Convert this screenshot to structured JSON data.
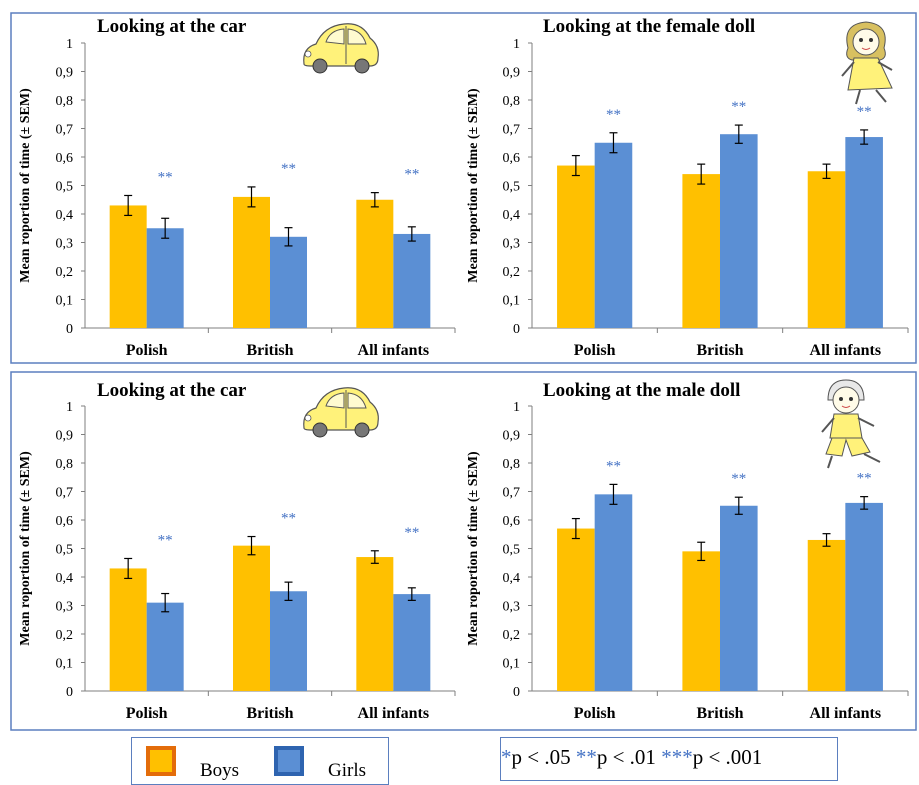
{
  "colors": {
    "boys": "#ffc000",
    "girls": "#5b8fd4",
    "frame": "#5b7fbf",
    "stars": "#4472c4",
    "axis": "#7f7f7f"
  },
  "top_title_fragment": "",
  "legend": {
    "boys_label": "Boys",
    "girls_label": "Girls",
    "sig": {
      "one_star": "*",
      "one_text": "p < .05 ",
      "two_star": "**",
      "two_text": "p < .01 ",
      "three_star": "***",
      "three_text": "p < .001"
    }
  },
  "chart_data": [
    {
      "type": "bar",
      "title": "Looking at the car",
      "ylabel": "Mean roportion of time (± SEM)",
      "ylim": [
        0,
        1
      ],
      "yticks": [
        "0",
        "0,1",
        "0,2",
        "0,3",
        "0,4",
        "0,5",
        "0,6",
        "0,7",
        "0,8",
        "0,9",
        "1"
      ],
      "categories": [
        "Polish",
        "British",
        "All infants"
      ],
      "series": [
        {
          "name": "Boys",
          "values": [
            0.43,
            0.46,
            0.45
          ],
          "sem": [
            0.035,
            0.035,
            0.025
          ]
        },
        {
          "name": "Girls",
          "values": [
            0.35,
            0.32,
            0.33
          ],
          "sem": [
            0.035,
            0.032,
            0.025
          ]
        }
      ],
      "annotations": [
        "**",
        "**",
        "**"
      ],
      "icon": "car-icon",
      "grid": false,
      "legend": "bottom"
    },
    {
      "type": "bar",
      "title": "Looking at the female doll",
      "ylabel": "Mean roportion of time (± SEM)",
      "ylim": [
        0,
        1
      ],
      "yticks": [
        "0",
        "0,1",
        "0,2",
        "0,3",
        "0,4",
        "0,5",
        "0,6",
        "0,7",
        "0,8",
        "0,9",
        "1"
      ],
      "categories": [
        "Polish",
        "British",
        "All infants"
      ],
      "series": [
        {
          "name": "Boys",
          "values": [
            0.57,
            0.54,
            0.55
          ],
          "sem": [
            0.035,
            0.035,
            0.025
          ]
        },
        {
          "name": "Girls",
          "values": [
            0.65,
            0.68,
            0.67
          ],
          "sem": [
            0.035,
            0.032,
            0.025
          ]
        }
      ],
      "annotations": [
        "**",
        "**",
        "**"
      ],
      "icon": "female-doll-icon",
      "grid": false,
      "legend": "bottom"
    },
    {
      "type": "bar",
      "title": "Looking at the car",
      "ylabel": "Mean roportion of time (± SEM)",
      "ylim": [
        0,
        1
      ],
      "yticks": [
        "0",
        "0,1",
        "0,2",
        "0,3",
        "0,4",
        "0,5",
        "0,6",
        "0,7",
        "0,8",
        "0,9",
        "1"
      ],
      "categories": [
        "Polish",
        "British",
        "All infants"
      ],
      "series": [
        {
          "name": "Boys",
          "values": [
            0.43,
            0.51,
            0.47
          ],
          "sem": [
            0.035,
            0.032,
            0.022
          ]
        },
        {
          "name": "Girls",
          "values": [
            0.31,
            0.35,
            0.34
          ],
          "sem": [
            0.032,
            0.032,
            0.022
          ]
        }
      ],
      "annotations": [
        "**",
        "**",
        "**"
      ],
      "icon": "car-icon",
      "grid": false,
      "legend": "bottom"
    },
    {
      "type": "bar",
      "title": "Looking at the male doll",
      "ylabel": "Mean roportion of time (± SEM)",
      "ylim": [
        0,
        1
      ],
      "yticks": [
        "0",
        "0,1",
        "0,2",
        "0,3",
        "0,4",
        "0,5",
        "0,6",
        "0,7",
        "0,8",
        "0,9",
        "1"
      ],
      "categories": [
        "Polish",
        "British",
        "All infants"
      ],
      "series": [
        {
          "name": "Boys",
          "values": [
            0.57,
            0.49,
            0.53
          ],
          "sem": [
            0.035,
            0.032,
            0.022
          ]
        },
        {
          "name": "Girls",
          "values": [
            0.69,
            0.65,
            0.66
          ],
          "sem": [
            0.035,
            0.03,
            0.022
          ]
        }
      ],
      "annotations": [
        "**",
        "**",
        "**"
      ],
      "icon": "male-doll-icon",
      "grid": false,
      "legend": "bottom"
    }
  ]
}
